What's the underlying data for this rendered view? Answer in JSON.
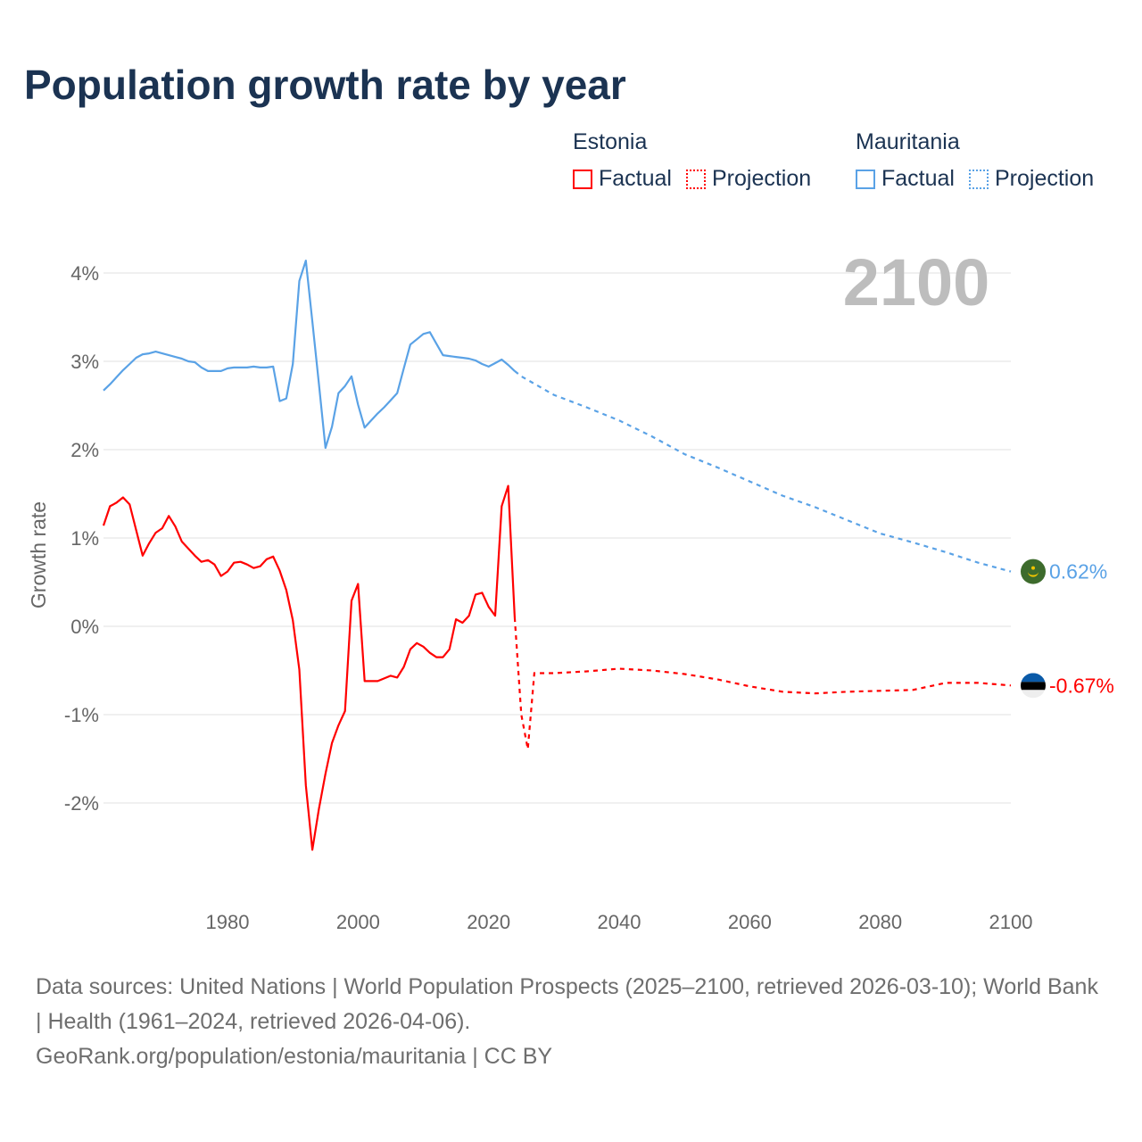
{
  "title": "Population growth rate by year",
  "legend": {
    "groups": [
      {
        "country": "Estonia",
        "factual": "Factual",
        "projection": "Projection",
        "color": "#ff0000"
      },
      {
        "country": "Mauritania",
        "factual": "Factual",
        "projection": "Projection",
        "color": "#5aa2e6"
      }
    ]
  },
  "year_label": "2100",
  "footer": {
    "sources": "Data sources: United Nations | World Population Prospects (2025–2100, retrieved 2026-03-10); World Bank | Health (1961–2024, retrieved 2026-04-06).",
    "link": "GeoRank.org/population/estonia/mauritania | CC BY"
  },
  "chart_data": {
    "type": "line",
    "title": "Population growth rate by year",
    "ylabel": "Growth rate",
    "xlabel": "",
    "xlim": [
      1961,
      2100
    ],
    "ylim": [
      -3.1,
      4.2
    ],
    "xticks": [
      1980,
      2000,
      2020,
      2040,
      2060,
      2080,
      2100
    ],
    "yticks": [
      {
        "v": 4,
        "label": "4%"
      },
      {
        "v": 3,
        "label": "3%"
      },
      {
        "v": 2,
        "label": "2%"
      },
      {
        "v": 1,
        "label": "1%"
      },
      {
        "v": 0,
        "label": "0%"
      },
      {
        "v": -1,
        "label": "-1%"
      },
      {
        "v": -2,
        "label": "-2%"
      }
    ],
    "grid": true,
    "legend_position": "top-right",
    "series": [
      {
        "name": "Mauritania",
        "color": "#5aa2e6",
        "end_label": "0.62%",
        "flag": "mauritania-flag",
        "factual": {
          "x": [
            1961,
            1962,
            1963,
            1964,
            1965,
            1966,
            1967,
            1968,
            1969,
            1970,
            1971,
            1972,
            1973,
            1974,
            1975,
            1976,
            1977,
            1978,
            1979,
            1980,
            1981,
            1982,
            1983,
            1984,
            1985,
            1986,
            1987,
            1988,
            1989,
            1990,
            1991,
            1992,
            1993,
            1994,
            1995,
            1996,
            1997,
            1998,
            1999,
            2000,
            2001,
            2002,
            2003,
            2004,
            2005,
            2006,
            2007,
            2008,
            2009,
            2010,
            2011,
            2012,
            2013,
            2014,
            2015,
            2016,
            2017,
            2018,
            2019,
            2020,
            2021,
            2022,
            2023,
            2024
          ],
          "y": [
            2.67,
            2.74,
            2.82,
            2.9,
            2.97,
            3.04,
            3.08,
            3.09,
            3.11,
            3.09,
            3.07,
            3.05,
            3.03,
            3.0,
            2.99,
            2.93,
            2.89,
            2.89,
            2.89,
            2.92,
            2.93,
            2.93,
            2.93,
            2.94,
            2.93,
            2.93,
            2.94,
            2.55,
            2.58,
            2.97,
            3.91,
            4.14,
            3.45,
            2.75,
            2.02,
            2.26,
            2.64,
            2.72,
            2.83,
            2.51,
            2.25,
            2.33,
            2.41,
            2.48,
            2.56,
            2.64,
            2.92,
            3.19,
            3.25,
            3.31,
            3.33,
            3.2,
            3.07,
            3.06,
            3.05,
            3.04,
            3.03,
            3.01,
            2.97,
            2.94,
            2.98,
            3.02,
            2.96,
            2.89
          ]
        },
        "projection": {
          "x": [
            2024,
            2025,
            2030,
            2035,
            2040,
            2045,
            2050,
            2055,
            2060,
            2065,
            2070,
            2075,
            2080,
            2085,
            2090,
            2095,
            2100
          ],
          "y": [
            2.89,
            2.83,
            2.62,
            2.48,
            2.33,
            2.15,
            1.95,
            1.8,
            1.64,
            1.48,
            1.35,
            1.2,
            1.05,
            0.95,
            0.84,
            0.72,
            0.62
          ]
        }
      },
      {
        "name": "Estonia",
        "color": "#ff0000",
        "end_label": "-0.67%",
        "flag": "estonia-flag",
        "factual": {
          "x": [
            1961,
            1962,
            1963,
            1964,
            1965,
            1966,
            1967,
            1968,
            1969,
            1970,
            1971,
            1972,
            1973,
            1974,
            1975,
            1976,
            1977,
            1978,
            1979,
            1980,
            1981,
            1982,
            1983,
            1984,
            1985,
            1986,
            1987,
            1988,
            1989,
            1990,
            1991,
            1992,
            1993,
            1994,
            1995,
            1996,
            1997,
            1998,
            1999,
            2000,
            2001,
            2002,
            2003,
            2004,
            2005,
            2006,
            2007,
            2008,
            2009,
            2010,
            2011,
            2012,
            2013,
            2014,
            2015,
            2016,
            2017,
            2018,
            2019,
            2020,
            2021,
            2022,
            2023,
            2024
          ],
          "y": [
            1.14,
            1.36,
            1.4,
            1.46,
            1.38,
            1.09,
            0.8,
            0.94,
            1.06,
            1.11,
            1.25,
            1.13,
            0.96,
            0.88,
            0.8,
            0.73,
            0.75,
            0.7,
            0.57,
            0.62,
            0.72,
            0.73,
            0.7,
            0.66,
            0.68,
            0.76,
            0.79,
            0.63,
            0.41,
            0.07,
            -0.49,
            -1.8,
            -2.53,
            -2.07,
            -1.67,
            -1.32,
            -1.12,
            -0.96,
            0.29,
            0.48,
            -0.62,
            -0.62,
            -0.62,
            -0.59,
            -0.56,
            -0.58,
            -0.46,
            -0.26,
            -0.19,
            -0.23,
            -0.3,
            -0.35,
            -0.35,
            -0.26,
            0.08,
            0.04,
            0.12,
            0.36,
            0.38,
            0.22,
            0.12,
            1.36,
            1.59,
            0.1
          ]
        },
        "projection": {
          "x": [
            2024,
            2025,
            2026,
            2027,
            2030,
            2035,
            2040,
            2045,
            2050,
            2055,
            2060,
            2065,
            2070,
            2075,
            2080,
            2085,
            2090,
            2095,
            2100
          ],
          "y": [
            0.1,
            -1.0,
            -1.39,
            -0.53,
            -0.53,
            -0.51,
            -0.48,
            -0.5,
            -0.54,
            -0.6,
            -0.68,
            -0.74,
            -0.76,
            -0.74,
            -0.73,
            -0.72,
            -0.64,
            -0.64,
            -0.67
          ]
        }
      }
    ]
  }
}
